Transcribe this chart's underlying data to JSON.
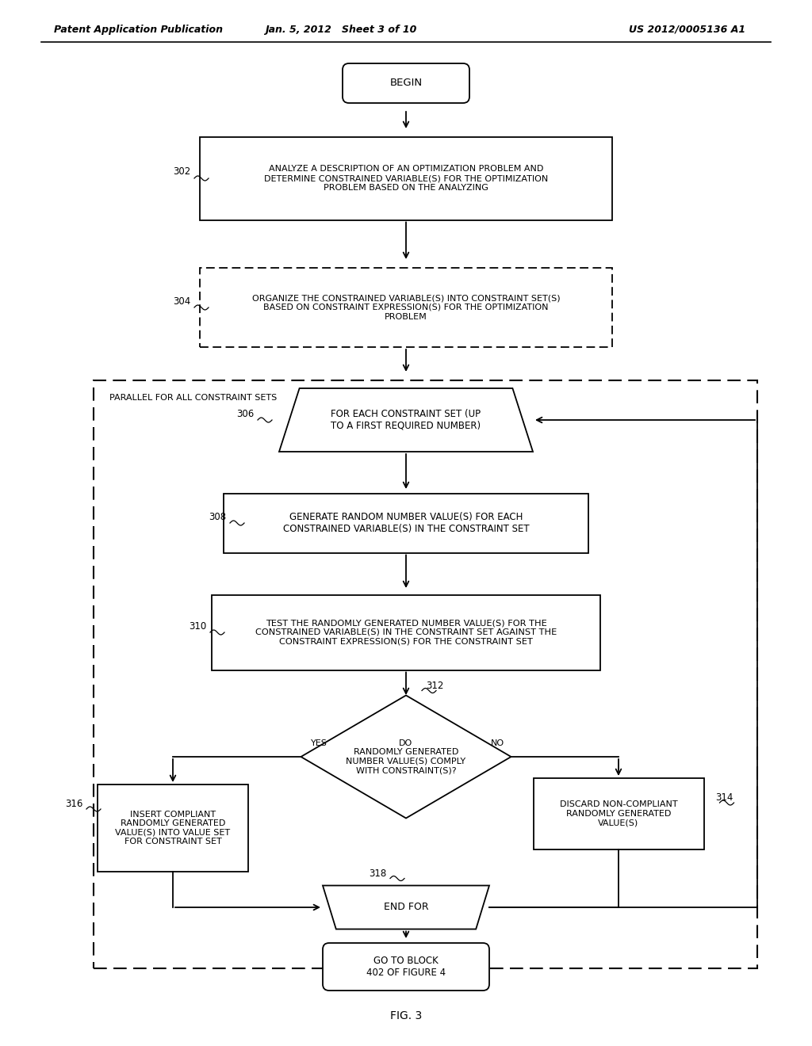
{
  "bg_color": "#ffffff",
  "header_left": "Patent Application Publication",
  "header_mid": "Jan. 5, 2012   Sheet 3 of 10",
  "header_right": "US 2012/0005136 A1",
  "fig_label": "FIG. 3"
}
